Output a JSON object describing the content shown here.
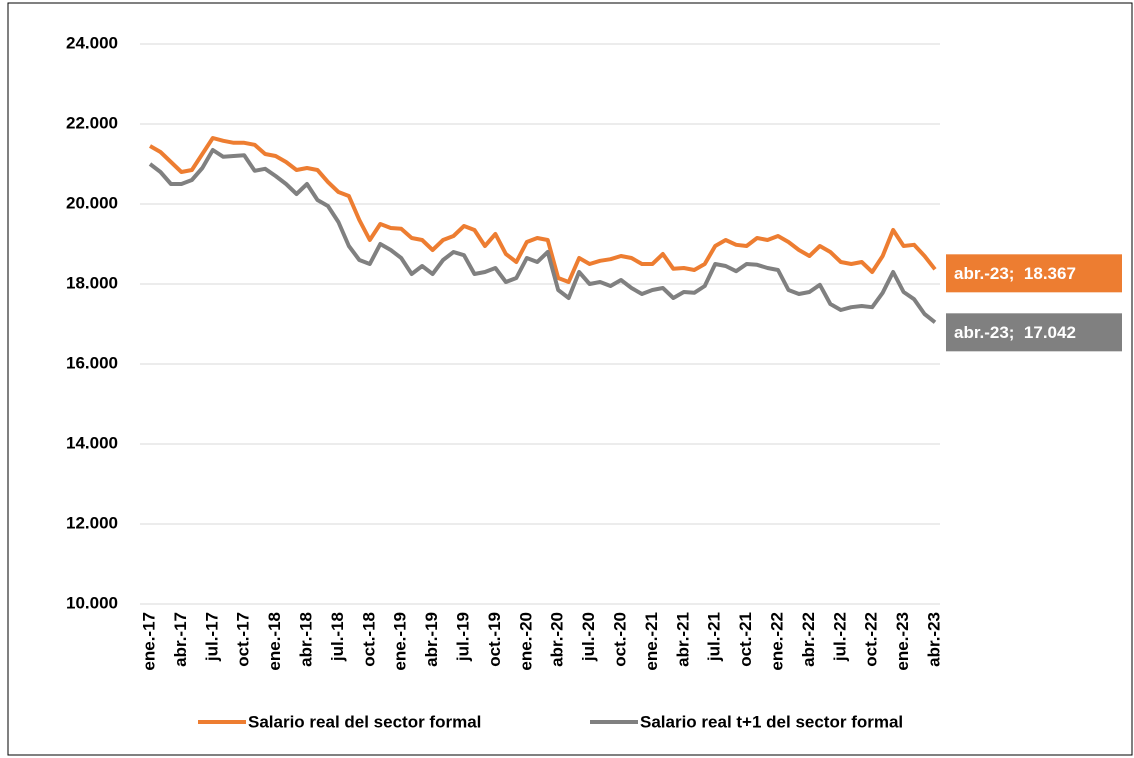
{
  "chart_data": {
    "type": "line",
    "categories": [
      "ene.-17",
      null,
      null,
      "abr.-17",
      null,
      null,
      "jul.-17",
      null,
      null,
      "oct.-17",
      null,
      null,
      "ene.-18",
      null,
      null,
      "abr.-18",
      null,
      null,
      "jul.-18",
      null,
      null,
      "oct.-18",
      null,
      null,
      "ene.-19",
      null,
      null,
      "abr.-19",
      null,
      null,
      "jul.-19",
      null,
      null,
      "oct.-19",
      null,
      null,
      "ene.-20",
      null,
      null,
      "abr.-20",
      null,
      null,
      "jul.-20",
      null,
      null,
      "oct.-20",
      null,
      null,
      "ene.-21",
      null,
      null,
      "abr.-21",
      null,
      null,
      "jul.-21",
      null,
      null,
      "oct.-21",
      null,
      null,
      "ene.-22",
      null,
      null,
      "abr.-22",
      null,
      null,
      "jul.-22",
      null,
      null,
      "oct.-22",
      null,
      null,
      "ene.-23",
      null,
      null,
      "abr.-23"
    ],
    "series": [
      {
        "name": "Salario real del sector formal",
        "color": "#ed7d31",
        "values": [
          21450,
          21300,
          21050,
          20800,
          20850,
          21250,
          21650,
          21580,
          21530,
          21530,
          21480,
          21250,
          21200,
          21050,
          20850,
          20900,
          20850,
          20550,
          20300,
          20200,
          19600,
          19100,
          19500,
          19400,
          19380,
          19150,
          19100,
          18850,
          19100,
          19200,
          19450,
          19350,
          18950,
          19250,
          18750,
          18550,
          19050,
          19150,
          19100,
          18150,
          18050,
          18650,
          18500,
          18580,
          18620,
          18700,
          18650,
          18500,
          18500,
          18750,
          18380,
          18400,
          18350,
          18500,
          18950,
          19100,
          18980,
          18950,
          19150,
          19100,
          19200,
          19050,
          18850,
          18700,
          18950,
          18800,
          18550,
          18500,
          18550,
          18300,
          18700,
          19350,
          18950,
          18980,
          18700,
          18367
        ],
        "value_labels": [
          null,
          null,
          null,
          null,
          null,
          null,
          null,
          null,
          null,
          null,
          null,
          null,
          null,
          null,
          null,
          null,
          null,
          null,
          null,
          null,
          null,
          null,
          null,
          null,
          null,
          null,
          null,
          null,
          null,
          null,
          null,
          null,
          null,
          null,
          null,
          null,
          null,
          null,
          null,
          null,
          null,
          null,
          null,
          null,
          null,
          null,
          null,
          null,
          null,
          null,
          null,
          null,
          null,
          null,
          null,
          null,
          null,
          null,
          null,
          null,
          null,
          null,
          null,
          null,
          null,
          null,
          null,
          null,
          null,
          null,
          null,
          null,
          null,
          null,
          null,
          "abr.-23;  18.367"
        ]
      },
      {
        "name": "Salario real t+1 del sector formal",
        "color": "#808080",
        "values": [
          21000,
          20800,
          20500,
          20500,
          20600,
          20900,
          21350,
          21180,
          21200,
          21220,
          20830,
          20880,
          20700,
          20500,
          20250,
          20500,
          20100,
          19950,
          19550,
          18950,
          18600,
          18500,
          19000,
          18850,
          18650,
          18250,
          18450,
          18250,
          18600,
          18800,
          18720,
          18250,
          18300,
          18400,
          18050,
          18150,
          18650,
          18550,
          18800,
          17850,
          17650,
          18300,
          18000,
          18050,
          17950,
          18100,
          17900,
          17750,
          17850,
          17900,
          17650,
          17800,
          17780,
          17950,
          18500,
          18450,
          18320,
          18500,
          18480,
          18400,
          18350,
          17850,
          17750,
          17800,
          17980,
          17500,
          17350,
          17420,
          17450,
          17420,
          17780,
          18300,
          17800,
          17620,
          17250,
          17042
        ],
        "value_labels": [
          null,
          null,
          null,
          null,
          null,
          null,
          null,
          null,
          null,
          null,
          null,
          null,
          null,
          null,
          null,
          null,
          null,
          null,
          null,
          null,
          null,
          null,
          null,
          null,
          null,
          null,
          null,
          null,
          null,
          null,
          null,
          null,
          null,
          null,
          null,
          null,
          null,
          null,
          null,
          null,
          null,
          null,
          null,
          null,
          null,
          null,
          null,
          null,
          null,
          null,
          null,
          null,
          null,
          null,
          null,
          null,
          null,
          null,
          null,
          null,
          null,
          null,
          null,
          null,
          null,
          null,
          null,
          null,
          null,
          null,
          null,
          null,
          null,
          null,
          null,
          "abr.-23;  17.042"
        ]
      }
    ],
    "ylim": [
      10000,
      24000
    ],
    "yticks": [
      {
        "value": 10000,
        "label": "10.000"
      },
      {
        "value": 12000,
        "label": "12.000"
      },
      {
        "value": 14000,
        "label": "14.000"
      },
      {
        "value": 16000,
        "label": "16.000"
      },
      {
        "value": 18000,
        "label": "18.000"
      },
      {
        "value": 20000,
        "label": "20.000"
      },
      {
        "value": 22000,
        "label": "22.000"
      },
      {
        "value": 24000,
        "label": "24.000"
      }
    ],
    "grid": true,
    "legend": "bottom"
  }
}
